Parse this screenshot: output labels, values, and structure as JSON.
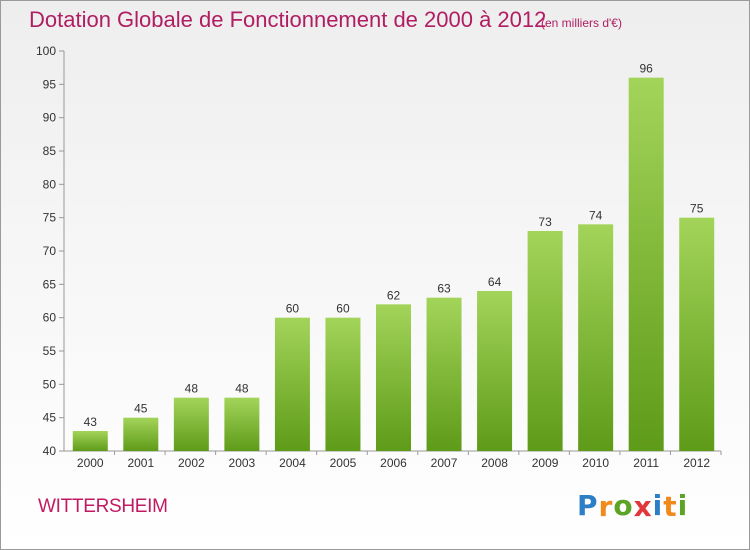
{
  "title": "Dotation Globale de Fonctionnement de 2000 à 2012",
  "subtitle": "(en milliers d'€)",
  "commune": "WITTERSHEIM",
  "brand": {
    "letters": [
      "P",
      "r",
      "o",
      "x",
      "i",
      "t",
      "i"
    ],
    "colors": [
      "#2c7fc4",
      "#f08a1c",
      "#5ca426",
      "#e2373a",
      "#2c7fc4",
      "#f08a1c",
      "#5ca426"
    ]
  },
  "colors": {
    "bar_top": "#a3d45a",
    "bar_bottom": "#5e9b18",
    "title": "#b01d62",
    "grid": "#999999"
  },
  "chart_data": {
    "type": "bar",
    "title": "Dotation Globale de Fonctionnement de 2000 à 2012",
    "subtitle": "(en milliers d'€)",
    "categories": [
      "2000",
      "2001",
      "2002",
      "2003",
      "2004",
      "2005",
      "2006",
      "2007",
      "2008",
      "2009",
      "2010",
      "2011",
      "2012"
    ],
    "values": [
      43,
      45,
      48,
      48,
      60,
      60,
      62,
      63,
      64,
      73,
      74,
      96,
      75
    ],
    "ylim": [
      40,
      100
    ],
    "yticks": [
      40,
      45,
      50,
      55,
      60,
      65,
      70,
      75,
      80,
      85,
      90,
      95,
      100
    ],
    "xlabel": "",
    "ylabel": "",
    "grid": false,
    "data_labels": true
  }
}
